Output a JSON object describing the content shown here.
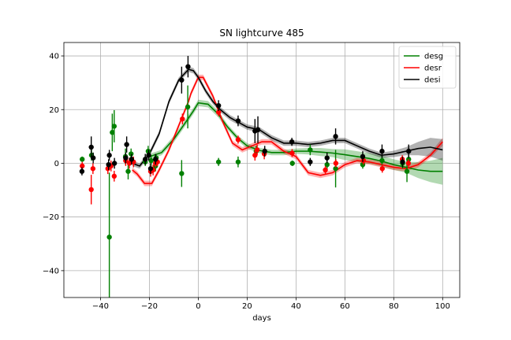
{
  "chart_data": {
    "type": "scatter",
    "title": "SN lightcurve 485",
    "xlabel": "days",
    "ylabel": "",
    "xlim": [
      -55,
      107
    ],
    "ylim": [
      -50,
      45
    ],
    "xticks": [
      -40,
      -20,
      0,
      20,
      40,
      60,
      80,
      100
    ],
    "yticks": [
      -40,
      -20,
      0,
      20,
      40
    ],
    "xtick_labels": [
      "−40",
      "−20",
      "0",
      "20",
      "40",
      "60",
      "80",
      "100"
    ],
    "ytick_labels": [
      "−40",
      "−20",
      "0",
      "20",
      "40"
    ],
    "grid": true,
    "legend_position": "top-right",
    "series": [
      {
        "name": "desg",
        "color": "#008000",
        "points": [
          [
            -47.5,
            1.5,
            1.0
          ],
          [
            -43.7,
            3.0,
            2.0
          ],
          [
            -36.4,
            -27.5,
            24.0
          ],
          [
            -35.2,
            11.5,
            7.0
          ],
          [
            -34.4,
            13.8,
            6.0
          ],
          [
            -29.8,
            2.5,
            3.0
          ],
          [
            -28.7,
            -3.0,
            3.0
          ],
          [
            -27.5,
            3.5,
            2.0
          ],
          [
            -21.7,
            0.5,
            1.5
          ],
          [
            -20.5,
            4.5,
            2.0
          ],
          [
            -19.3,
            1.0,
            2.0
          ],
          [
            -17.5,
            -1.0,
            2.0
          ],
          [
            -17.2,
            2.0,
            1.5
          ],
          [
            -6.8,
            -3.8,
            5.0
          ],
          [
            -4.3,
            21.0,
            8.0
          ],
          [
            8.3,
            0.5,
            1.5
          ],
          [
            16.3,
            0.5,
            2.0
          ],
          [
            23.7,
            4.5,
            2.0
          ],
          [
            38.5,
            0.0,
            1.0
          ],
          [
            45.8,
            5.0,
            2.0
          ],
          [
            52.7,
            -0.5,
            2.0
          ],
          [
            56.2,
            -2.0,
            7.0
          ],
          [
            67.3,
            -0.5,
            1.5
          ],
          [
            75.2,
            1.0,
            2.0
          ],
          [
            83.6,
            0.0,
            2.0
          ],
          [
            85.4,
            -3.0,
            4.0
          ],
          [
            86.1,
            1.5,
            1.5
          ]
        ],
        "fit_x": [
          -20,
          -15,
          -10,
          -5,
          -2,
          0,
          4,
          8,
          12,
          16,
          20,
          25,
          30,
          35,
          40,
          45,
          50,
          55,
          60,
          65,
          70,
          75,
          80,
          85,
          90,
          95,
          100
        ],
        "fit_y": [
          2.5,
          4.0,
          9.0,
          15.5,
          19.5,
          22.5,
          22.0,
          18.5,
          13.5,
          9.5,
          6.5,
          4.8,
          4.0,
          4.0,
          4.5,
          4.5,
          4.2,
          3.8,
          3.2,
          2.5,
          1.8,
          0.8,
          -0.5,
          -1.5,
          -2.5,
          -3.0,
          -3.0
        ],
        "fit_err": [
          1.0,
          1.0,
          1.2,
          1.2,
          1.2,
          1.2,
          1.2,
          1.2,
          1.0,
          1.0,
          1.0,
          1.0,
          1.0,
          1.0,
          1.0,
          1.2,
          1.5,
          1.5,
          2.0,
          2.0,
          2.0,
          2.0,
          2.0,
          2.0,
          3.0,
          4.0,
          5.0
        ]
      },
      {
        "name": "desr",
        "color": "#ff0000",
        "points": [
          [
            -47.5,
            -1.0,
            1.5
          ],
          [
            -43.8,
            -9.8,
            5.5
          ],
          [
            -43.1,
            -2.0,
            2.0
          ],
          [
            -37.0,
            -2.0,
            2.0
          ],
          [
            -35.7,
            -1.0,
            2.0
          ],
          [
            -34.4,
            -4.8,
            2.0
          ],
          [
            -29.7,
            1.0,
            2.0
          ],
          [
            -28.2,
            0.0,
            2.0
          ],
          [
            -26.5,
            0.5,
            2.0
          ],
          [
            -19.5,
            -3.0,
            2.0
          ],
          [
            -18.5,
            -2.5,
            2.0
          ],
          [
            -17.5,
            0.0,
            1.5
          ],
          [
            -16.7,
            0.5,
            1.5
          ],
          [
            -6.5,
            16.5,
            2.0
          ],
          [
            8.3,
            19.0,
            1.5
          ],
          [
            16.3,
            8.8,
            1.5
          ],
          [
            23.2,
            3.0,
            2.0
          ],
          [
            24.1,
            5.0,
            2.0
          ],
          [
            27.0,
            3.5,
            2.0
          ],
          [
            38.4,
            3.8,
            1.5
          ],
          [
            52.0,
            -2.5,
            1.5
          ],
          [
            56.3,
            0.0,
            1.5
          ],
          [
            67.6,
            1.0,
            1.5
          ],
          [
            75.3,
            -2.0,
            1.5
          ],
          [
            83.5,
            1.5,
            1.5
          ],
          [
            86.0,
            0.0,
            1.5
          ]
        ],
        "fit_x": [
          -27,
          -25,
          -22,
          -19,
          -16,
          -12,
          -8,
          -4,
          -3,
          0,
          2,
          6,
          10,
          14,
          18,
          22,
          26,
          30,
          35,
          40,
          45,
          50,
          55,
          60,
          65,
          70,
          75,
          80,
          85,
          90,
          95,
          100
        ],
        "fit_y": [
          -2.5,
          -4.0,
          -7.5,
          -7.5,
          -2.5,
          5.0,
          14.0,
          23.0,
          26.0,
          32.0,
          32.0,
          25.0,
          15.5,
          7.5,
          5.0,
          6.5,
          8.0,
          8.0,
          4.5,
          2.5,
          -3.5,
          -4.5,
          -3.5,
          -0.5,
          1.0,
          0.5,
          -0.5,
          -1.5,
          -2.0,
          -0.5,
          3.0,
          8.0
        ],
        "fit_err": [
          1.0,
          1.0,
          1.0,
          1.0,
          1.0,
          1.0,
          1.0,
          1.0,
          1.0,
          1.0,
          1.0,
          1.0,
          1.0,
          1.0,
          1.0,
          1.0,
          1.0,
          1.0,
          1.0,
          1.0,
          1.0,
          1.0,
          1.0,
          1.0,
          1.0,
          1.0,
          1.0,
          1.0,
          1.0,
          1.0,
          1.0,
          1.5
        ]
      },
      {
        "name": "desi",
        "color": "#000000",
        "points": [
          [
            -47.6,
            -3.0,
            1.5
          ],
          [
            -43.8,
            6.0,
            4.0
          ],
          [
            -43.0,
            2.0,
            2.0
          ],
          [
            -36.7,
            -0.5,
            2.0
          ],
          [
            -36.4,
            3.0,
            2.0
          ],
          [
            -34.3,
            0.0,
            2.0
          ],
          [
            -29.7,
            2.0,
            2.0
          ],
          [
            -29.3,
            7.0,
            3.0
          ],
          [
            -27.3,
            1.5,
            2.0
          ],
          [
            -21.7,
            1.5,
            2.0
          ],
          [
            -20.3,
            3.0,
            2.0
          ],
          [
            -19.5,
            -2.0,
            2.0
          ],
          [
            -17.5,
            1.5,
            2.0
          ],
          [
            -6.8,
            31.0,
            5.0
          ],
          [
            -4.2,
            36.0,
            4.0
          ],
          [
            8.3,
            21.5,
            2.0
          ],
          [
            16.3,
            15.8,
            2.0
          ],
          [
            23.2,
            12.0,
            4.5
          ],
          [
            24.4,
            12.5,
            5.0
          ],
          [
            27.2,
            4.5,
            2.0
          ],
          [
            38.3,
            8.0,
            1.5
          ],
          [
            45.8,
            0.5,
            1.5
          ],
          [
            52.7,
            2.0,
            2.0
          ],
          [
            56.2,
            10.0,
            3.0
          ],
          [
            67.3,
            2.5,
            2.0
          ],
          [
            75.2,
            4.5,
            2.5
          ],
          [
            83.6,
            0.5,
            2.0
          ],
          [
            86.1,
            4.5,
            2.5
          ]
        ],
        "fit_x": [
          -27,
          -24,
          -20,
          -16,
          -12,
          -8,
          -4,
          -2,
          0,
          3,
          6,
          9,
          13,
          17,
          20,
          25,
          30,
          35,
          40,
          45,
          50,
          55,
          60,
          65,
          70,
          75,
          80,
          85,
          90,
          95,
          100
        ],
        "fit_y": [
          0.0,
          -1.0,
          3.5,
          11.0,
          23.0,
          31.0,
          35.0,
          34.5,
          32.0,
          27.0,
          23.0,
          20.0,
          17.0,
          15.0,
          13.5,
          12.5,
          9.5,
          7.5,
          7.5,
          7.0,
          7.5,
          8.5,
          8.5,
          6.5,
          4.5,
          3.0,
          3.5,
          4.5,
          5.5,
          6.0,
          5.0
        ],
        "fit_err": [
          1.0,
          1.0,
          1.0,
          1.0,
          1.0,
          1.0,
          1.0,
          1.0,
          1.0,
          1.0,
          1.0,
          1.0,
          1.0,
          1.0,
          1.0,
          1.0,
          1.0,
          1.0,
          1.0,
          1.0,
          1.0,
          1.0,
          1.0,
          1.0,
          1.0,
          1.0,
          1.2,
          1.5,
          2.5,
          3.5,
          4.0
        ]
      }
    ]
  }
}
